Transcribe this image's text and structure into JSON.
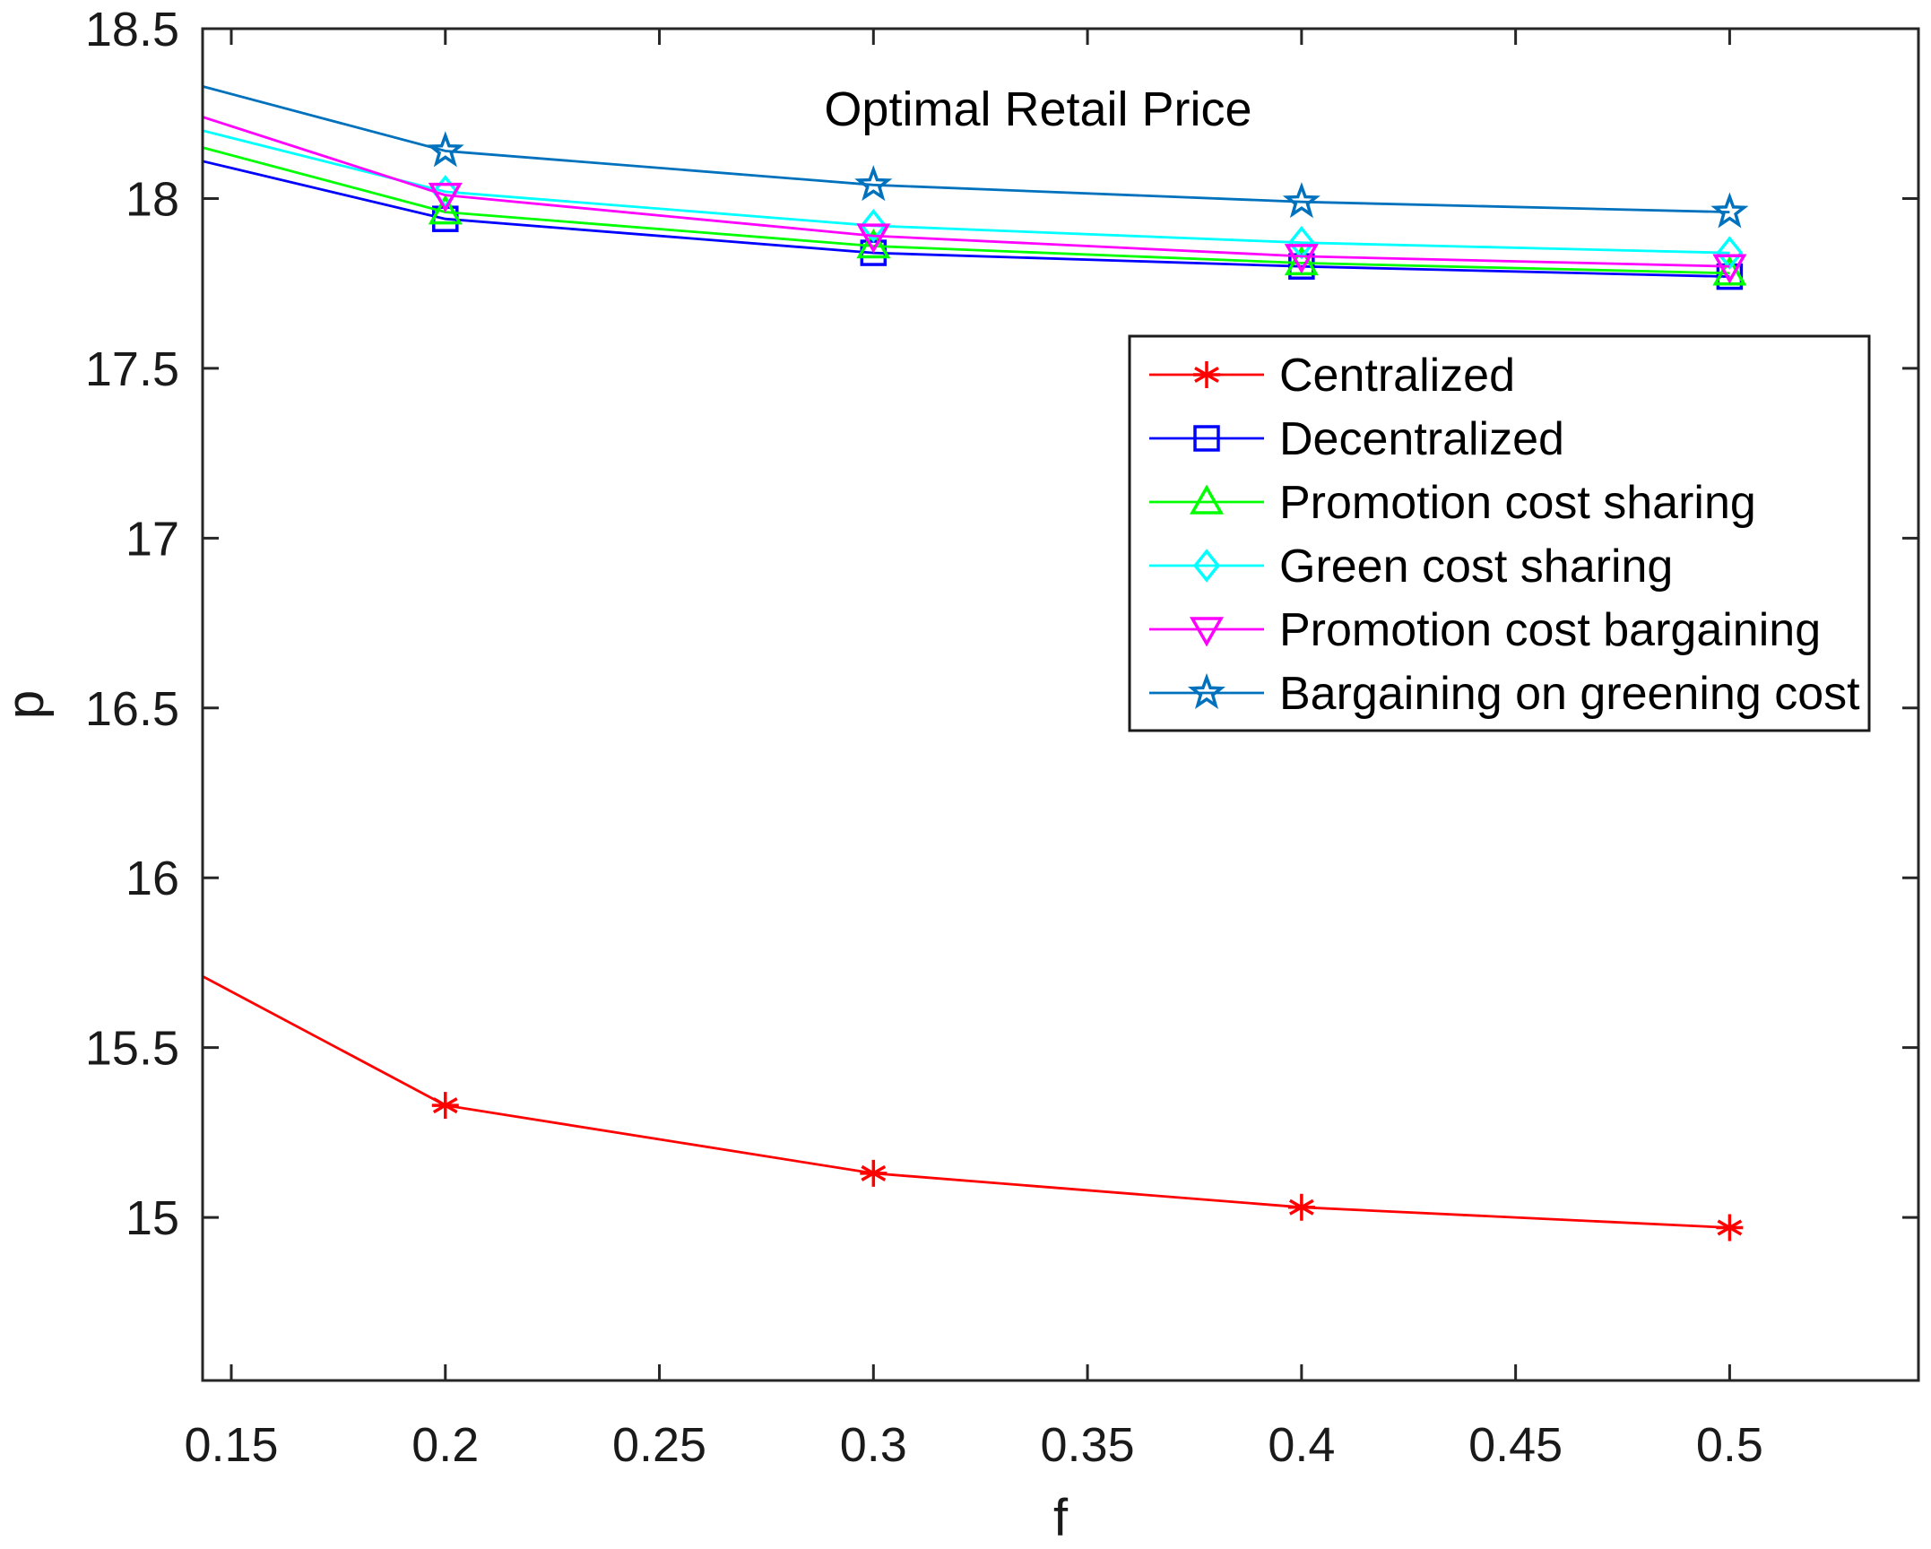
{
  "chart_data": {
    "type": "line",
    "title": "Optimal Retail Price",
    "xlabel": "f",
    "ylabel": "p",
    "xlim": [
      0.1433,
      0.5441
    ],
    "ylim": [
      14.52,
      18.5
    ],
    "xticks": [
      0.15,
      0.2,
      0.25,
      0.3,
      0.35,
      0.4,
      0.45,
      0.5
    ],
    "xtick_labels": [
      "0.15",
      "0.2",
      "0.25",
      "0.3",
      "0.35",
      "0.4",
      "0.45",
      "0.5"
    ],
    "yticks": [
      15,
      15.5,
      16,
      16.5,
      17,
      17.5,
      18,
      18.5
    ],
    "ytick_labels": [
      "15",
      "15.5",
      "16",
      "16.5",
      "17",
      "17.5",
      "18",
      "18.5"
    ],
    "grid": false,
    "legend_position": "upper-right",
    "x": [
      0.1433,
      0.2,
      0.3,
      0.4,
      0.5
    ],
    "series": [
      {
        "name": "Centralized",
        "color": "#ff0000",
        "marker": "asterisk",
        "values": [
          15.71,
          15.33,
          15.13,
          15.03,
          14.97
        ]
      },
      {
        "name": "Decentralized",
        "color": "#0000ff",
        "marker": "square",
        "values": [
          18.11,
          17.94,
          17.84,
          17.8,
          17.77
        ]
      },
      {
        "name": "Promotion cost sharing",
        "color": "#00ff00",
        "marker": "triangle-up",
        "values": [
          18.15,
          17.96,
          17.86,
          17.81,
          17.78
        ]
      },
      {
        "name": "Green cost sharing",
        "color": "#00ffff",
        "marker": "diamond",
        "values": [
          18.2,
          18.02,
          17.92,
          17.87,
          17.84
        ]
      },
      {
        "name": "Promotion cost bargaining",
        "color": "#ff00ff",
        "marker": "triangle-down",
        "values": [
          18.24,
          18.01,
          17.89,
          17.83,
          17.8
        ]
      },
      {
        "name": "Bargaining on greening cost",
        "color": "#0072bd",
        "marker": "star",
        "values": [
          18.33,
          18.14,
          18.04,
          17.99,
          17.96
        ]
      }
    ]
  }
}
